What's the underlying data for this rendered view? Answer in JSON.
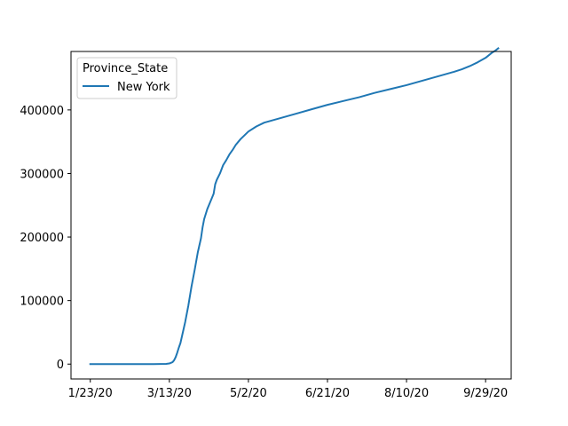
{
  "chart_data": {
    "type": "line",
    "title": "",
    "xlabel": "",
    "ylabel": "",
    "x_start": "1/23/20",
    "x_end": "10/13/20",
    "x_ticks": [
      {
        "day": 0,
        "label": "1/23/20"
      },
      {
        "day": 50,
        "label": "3/13/20"
      },
      {
        "day": 100,
        "label": "5/2/20"
      },
      {
        "day": 150,
        "label": "6/21/20"
      },
      {
        "day": 200,
        "label": "8/10/20"
      },
      {
        "day": 250,
        "label": "9/29/20"
      }
    ],
    "y_ticks": [
      {
        "value": 0,
        "label": "0"
      },
      {
        "value": 100000,
        "label": "100000"
      },
      {
        "value": 200000,
        "label": "200000"
      },
      {
        "value": 300000,
        "label": "300000"
      },
      {
        "value": 400000,
        "label": "400000"
      }
    ],
    "xlim": [
      -12.2,
      266.2
    ],
    "ylim": [
      -23400,
      492000
    ],
    "grid": false,
    "legend": {
      "title": "Province_State",
      "placement": "top-left"
    },
    "series": [
      {
        "name": "New York",
        "color": "#1f77b4",
        "points": [
          [
            0,
            0
          ],
          [
            40,
            0
          ],
          [
            48,
            400
          ],
          [
            50,
            1000
          ],
          [
            52,
            3000
          ],
          [
            53,
            6000
          ],
          [
            54,
            11000
          ],
          [
            55,
            18000
          ],
          [
            56,
            26000
          ],
          [
            57,
            33000
          ],
          [
            58,
            44000
          ],
          [
            60,
            66000
          ],
          [
            62,
            92000
          ],
          [
            64,
            122000
          ],
          [
            66,
            148000
          ],
          [
            68,
            176000
          ],
          [
            70,
            198000
          ],
          [
            71,
            215000
          ],
          [
            72,
            228000
          ],
          [
            74,
            244000
          ],
          [
            76,
            256000
          ],
          [
            78,
            268000
          ],
          [
            79,
            283000
          ],
          [
            80,
            290000
          ],
          [
            82,
            300000
          ],
          [
            84,
            313000
          ],
          [
            86,
            321000
          ],
          [
            88,
            330000
          ],
          [
            90,
            337000
          ],
          [
            92,
            345000
          ],
          [
            95,
            354000
          ],
          [
            100,
            366000
          ],
          [
            105,
            374000
          ],
          [
            110,
            380000
          ],
          [
            120,
            387000
          ],
          [
            130,
            394000
          ],
          [
            140,
            401000
          ],
          [
            150,
            408000
          ],
          [
            160,
            414000
          ],
          [
            170,
            420000
          ],
          [
            180,
            427000
          ],
          [
            190,
            433000
          ],
          [
            200,
            439000
          ],
          [
            210,
            446000
          ],
          [
            220,
            453000
          ],
          [
            230,
            460000
          ],
          [
            235,
            464000
          ],
          [
            240,
            469000
          ],
          [
            245,
            475000
          ],
          [
            250,
            482000
          ],
          [
            252,
            486000
          ],
          [
            254,
            490000
          ],
          [
            256,
            493000
          ],
          [
            258,
            497000
          ]
        ]
      }
    ]
  }
}
